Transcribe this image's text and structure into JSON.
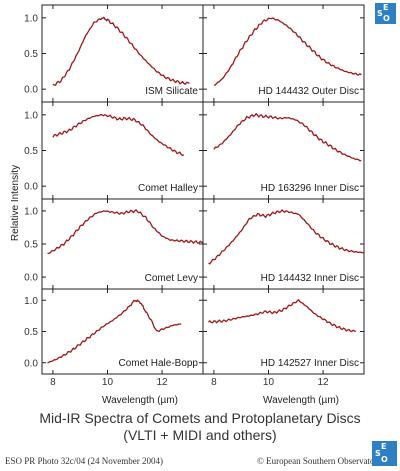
{
  "title": "Mid-IR  Spectra of Comets and Protoplanetary Discs",
  "subtitle": "(VLTI + MIDI and others)",
  "footer_left": "ESO PR Photo 32c/04 (24 November 2004)",
  "footer_right": "© European Southern Observatory",
  "logo_text": "ESO",
  "colors": {
    "line": "#a01818",
    "axis": "#222222",
    "logo": "#2f7fc4"
  },
  "chart_data": {
    "type": "line",
    "layout": "4x2 panel grid",
    "xlabel": "Wavelength (µm)",
    "ylabel": "Relative Intensity",
    "xlim": [
      7.6,
      13.5
    ],
    "ylim": [
      -0.18,
      1.18
    ],
    "xticks": [
      "8",
      "10",
      "12"
    ],
    "yticks": [
      "0.0",
      "0.5",
      "1.0"
    ],
    "panels": [
      {
        "name": "ISM Silicate",
        "x": [
          8.0,
          8.3,
          8.6,
          8.9,
          9.2,
          9.5,
          9.8,
          10.0,
          10.3,
          10.6,
          10.9,
          11.2,
          11.5,
          11.8,
          12.1,
          12.4,
          12.7,
          13.0
        ],
        "y": [
          0.05,
          0.12,
          0.28,
          0.5,
          0.75,
          0.93,
          1.0,
          0.97,
          0.88,
          0.76,
          0.62,
          0.48,
          0.36,
          0.25,
          0.17,
          0.12,
          0.09,
          0.08
        ]
      },
      {
        "name": "HD 144432 Outer Disc",
        "x": [
          8.0,
          8.3,
          8.6,
          8.9,
          9.2,
          9.5,
          9.8,
          10.1,
          10.4,
          10.7,
          11.0,
          11.3,
          11.6,
          11.9,
          12.2,
          12.5,
          12.8,
          13.1,
          13.4
        ],
        "y": [
          0.05,
          0.14,
          0.3,
          0.5,
          0.68,
          0.83,
          0.95,
          1.0,
          0.96,
          0.88,
          0.78,
          0.66,
          0.55,
          0.44,
          0.36,
          0.3,
          0.25,
          0.22,
          0.2
        ]
      },
      {
        "name": "Comet Halley",
        "x": [
          8.0,
          8.3,
          8.6,
          8.9,
          9.2,
          9.5,
          9.8,
          10.1,
          10.4,
          10.7,
          11.0,
          11.3,
          11.6,
          11.9,
          12.2,
          12.5,
          12.8
        ],
        "y": [
          0.7,
          0.74,
          0.78,
          0.86,
          0.93,
          0.98,
          1.0,
          0.98,
          0.94,
          0.95,
          0.93,
          0.85,
          0.72,
          0.62,
          0.55,
          0.48,
          0.44
        ]
      },
      {
        "name": "HD 163296 Inner Disc",
        "x": [
          8.0,
          8.3,
          8.6,
          8.9,
          9.2,
          9.5,
          9.8,
          10.1,
          10.4,
          10.7,
          11.0,
          11.3,
          11.6,
          11.9,
          12.2,
          12.5,
          12.8,
          13.1,
          13.4
        ],
        "y": [
          0.52,
          0.6,
          0.72,
          0.86,
          0.96,
          1.0,
          0.98,
          0.97,
          0.95,
          0.96,
          0.93,
          0.86,
          0.75,
          0.65,
          0.58,
          0.5,
          0.44,
          0.39,
          0.36
        ]
      },
      {
        "name": "Comet Levy",
        "x": [
          7.8,
          8.1,
          8.4,
          8.7,
          9.0,
          9.3,
          9.6,
          9.9,
          10.2,
          10.5,
          10.8,
          11.1,
          11.4,
          11.7,
          12.0,
          12.3,
          12.6,
          12.9,
          13.2,
          13.5
        ],
        "y": [
          0.35,
          0.42,
          0.5,
          0.62,
          0.76,
          0.88,
          0.97,
          1.0,
          0.98,
          0.96,
          0.99,
          1.0,
          0.9,
          0.74,
          0.62,
          0.56,
          0.55,
          0.54,
          0.53,
          0.52
        ]
      },
      {
        "name": "HD 144432 Inner Disc",
        "x": [
          7.8,
          8.1,
          8.4,
          8.7,
          9.0,
          9.3,
          9.6,
          9.9,
          10.2,
          10.5,
          10.8,
          11.1,
          11.4,
          11.7,
          12.0,
          12.3,
          12.6,
          12.9,
          13.2,
          13.5
        ],
        "y": [
          0.2,
          0.3,
          0.42,
          0.55,
          0.7,
          0.88,
          0.95,
          0.92,
          0.97,
          1.0,
          0.98,
          0.95,
          0.82,
          0.68,
          0.58,
          0.5,
          0.44,
          0.4,
          0.38,
          0.37
        ]
      },
      {
        "name": "Comet Hale-Bopp",
        "x": [
          7.8,
          8.1,
          8.4,
          8.7,
          9.0,
          9.3,
          9.6,
          9.9,
          10.2,
          10.5,
          10.8,
          11.0,
          11.2,
          11.4,
          11.6,
          11.8,
          12.1,
          12.4,
          12.7
        ],
        "y": [
          0.0,
          0.05,
          0.12,
          0.2,
          0.3,
          0.4,
          0.5,
          0.6,
          0.68,
          0.78,
          0.9,
          1.0,
          0.97,
          0.82,
          0.68,
          0.5,
          0.55,
          0.6,
          0.62
        ]
      },
      {
        "name": "HD 142527 Inner Disc",
        "x": [
          7.8,
          8.1,
          8.4,
          8.7,
          9.0,
          9.3,
          9.6,
          9.9,
          10.2,
          10.5,
          10.8,
          11.1,
          11.4,
          11.7,
          12.0,
          12.3,
          12.6,
          12.9,
          13.2
        ],
        "y": [
          0.65,
          0.66,
          0.67,
          0.7,
          0.73,
          0.75,
          0.78,
          0.82,
          0.8,
          0.84,
          0.92,
          1.0,
          0.9,
          0.78,
          0.7,
          0.62,
          0.56,
          0.52,
          0.5
        ]
      }
    ]
  }
}
